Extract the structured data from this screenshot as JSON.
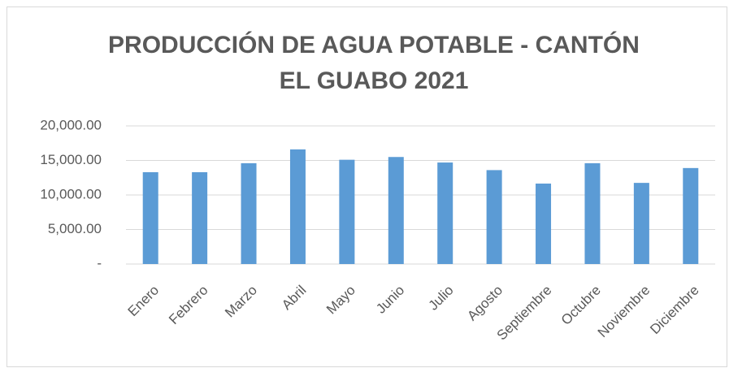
{
  "chart_data": {
    "type": "bar",
    "title": "PRODUCCIÓN DE AGUA POTABLE - CANTÓN EL GUABO 2021",
    "categories": [
      "Enero",
      "Febrero",
      "Marzo",
      "Abril",
      "Mayo",
      "Junio",
      "Julio",
      "Agosto",
      "Septiembre",
      "Octubre",
      "Noviembre",
      "Diciembre"
    ],
    "values": [
      13300,
      13300,
      14600,
      16600,
      15100,
      15500,
      14700,
      13600,
      11650,
      14600,
      11750,
      13900
    ],
    "color": "#5b9bd5",
    "ylim": [
      0,
      20000
    ],
    "yticks": [
      {
        "value": 0,
        "label": "-"
      },
      {
        "value": 5000,
        "label": "5,000.00"
      },
      {
        "value": 10000,
        "label": "10,000.00"
      },
      {
        "value": 15000,
        "label": "15,000.00"
      },
      {
        "value": 20000,
        "label": "20,000.00"
      }
    ],
    "grid": true
  }
}
